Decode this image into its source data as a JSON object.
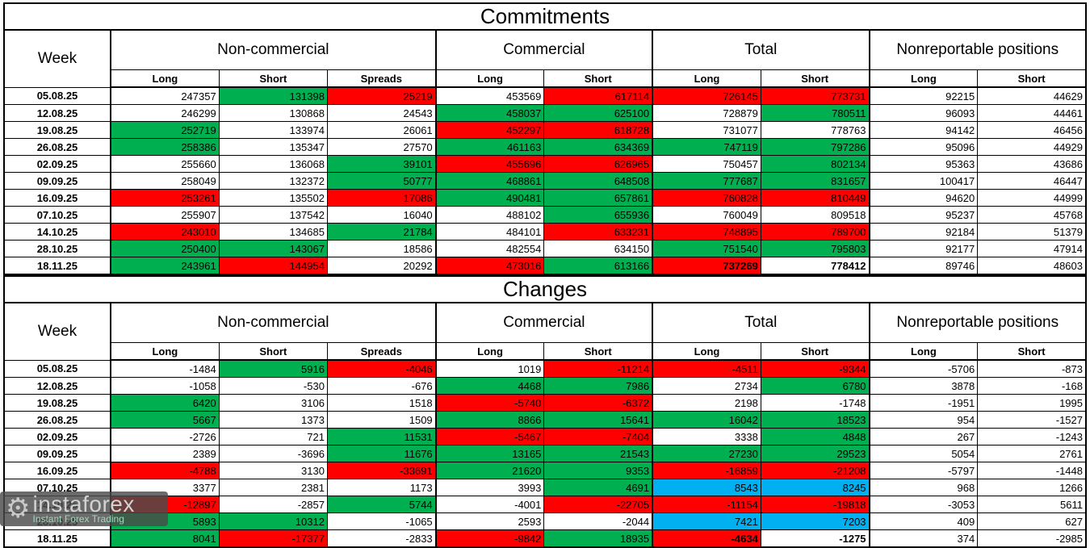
{
  "colors": {
    "w": "#FFFFFF",
    "g": "#00B050",
    "r": "#FF0000",
    "b": "#00B0F0",
    "grid": "#000000"
  },
  "logo": {
    "brand": "instaforex",
    "tagline": "Instant Forex Trading"
  },
  "chart_data": [
    {
      "type": "table",
      "title": "Commitments",
      "week_label": "Week",
      "groups": [
        {
          "label": "Non-commercial",
          "span": 3
        },
        {
          "label": "Commercial",
          "span": 2
        },
        {
          "label": "Total",
          "span": 2
        },
        {
          "label": "Nonreportable positions",
          "span": 2
        }
      ],
      "sub_columns": [
        "Long",
        "Short",
        "Spreads",
        "Long",
        "Short",
        "Long",
        "Short",
        "Long",
        "Short"
      ],
      "weeks": [
        "05.08.25",
        "12.08.25",
        "19.08.25",
        "26.08.25",
        "02.09.25",
        "09.09.25",
        "16.09.25",
        "07.10.25",
        "14.10.25",
        "28.10.25",
        "18.11.25"
      ],
      "values": [
        [
          247357,
          131398,
          25219,
          453569,
          617114,
          726145,
          773731,
          92215,
          44629
        ],
        [
          246299,
          130868,
          24543,
          458037,
          625100,
          728879,
          780511,
          96093,
          44461
        ],
        [
          252719,
          133974,
          26061,
          452297,
          618728,
          731077,
          778763,
          94142,
          46456
        ],
        [
          258386,
          135347,
          27570,
          461163,
          634369,
          747119,
          797286,
          95096,
          44929
        ],
        [
          255660,
          136068,
          39101,
          455696,
          626965,
          750457,
          802134,
          95363,
          43686
        ],
        [
          258049,
          132372,
          50777,
          468861,
          648508,
          777687,
          831657,
          100417,
          46447
        ],
        [
          253261,
          135502,
          17086,
          490481,
          657861,
          760828,
          810449,
          94620,
          44999
        ],
        [
          255907,
          137542,
          16040,
          488102,
          655936,
          760049,
          809518,
          95237,
          45768
        ],
        [
          243010,
          134685,
          21784,
          484101,
          633231,
          748895,
          789700,
          92184,
          51379
        ],
        [
          250400,
          143067,
          18586,
          482554,
          634150,
          751540,
          795803,
          92177,
          47914
        ],
        [
          243961,
          144954,
          20292,
          473016,
          613166,
          737269,
          778412,
          89746,
          48603
        ]
      ],
      "cell_colors": [
        [
          "w",
          "g",
          "r",
          "w",
          "r",
          "r",
          "r",
          "w",
          "w"
        ],
        [
          "w",
          "w",
          "w",
          "g",
          "g",
          "w",
          "g",
          "w",
          "w"
        ],
        [
          "g",
          "w",
          "w",
          "r",
          "r",
          "w",
          "w",
          "w",
          "w"
        ],
        [
          "g",
          "w",
          "w",
          "g",
          "g",
          "g",
          "g",
          "w",
          "w"
        ],
        [
          "w",
          "w",
          "g",
          "r",
          "r",
          "w",
          "g",
          "w",
          "w"
        ],
        [
          "w",
          "w",
          "g",
          "g",
          "g",
          "g",
          "g",
          "w",
          "w"
        ],
        [
          "r",
          "w",
          "r",
          "g",
          "g",
          "r",
          "r",
          "w",
          "w"
        ],
        [
          "w",
          "w",
          "w",
          "w",
          "g",
          "w",
          "w",
          "w",
          "w"
        ],
        [
          "r",
          "w",
          "g",
          "w",
          "r",
          "r",
          "r",
          "w",
          "w"
        ],
        [
          "g",
          "g",
          "w",
          "w",
          "w",
          "g",
          "g",
          "w",
          "w"
        ],
        [
          "g",
          "r",
          "w",
          "r",
          "g",
          "r",
          "w",
          "w",
          "w"
        ]
      ],
      "bold_cells": [
        [
          10,
          5
        ],
        [
          10,
          6
        ]
      ]
    },
    {
      "type": "table",
      "title": "Changes",
      "week_label": "Week",
      "groups": [
        {
          "label": "Non-commercial",
          "span": 3
        },
        {
          "label": "Commercial",
          "span": 2
        },
        {
          "label": "Total",
          "span": 2
        },
        {
          "label": "Nonreportable positions",
          "span": 2
        }
      ],
      "sub_columns": [
        "Long",
        "Short",
        "Spreads",
        "Long",
        "Short",
        "Long",
        "Short",
        "Long",
        "Short"
      ],
      "weeks": [
        "05.08.25",
        "12.08.25",
        "19.08.25",
        "26.08.25",
        "02.09.25",
        "09.09.25",
        "16.09.25",
        "07.10.25",
        "14.10.25",
        "28.10.25",
        "18.11.25"
      ],
      "values": [
        [
          -1484,
          5916,
          -4046,
          1019,
          -11214,
          -4511,
          -9344,
          -5706,
          -873
        ],
        [
          -1058,
          -530,
          -676,
          4468,
          7986,
          2734,
          6780,
          3878,
          -168
        ],
        [
          6420,
          3106,
          1518,
          -5740,
          -6372,
          2198,
          -1748,
          -1951,
          1995
        ],
        [
          5667,
          1373,
          1509,
          8866,
          15641,
          16042,
          18523,
          954,
          -1527
        ],
        [
          -2726,
          721,
          11531,
          -5467,
          -7404,
          3338,
          4848,
          267,
          -1243
        ],
        [
          2389,
          -3696,
          11676,
          13165,
          21543,
          27230,
          29523,
          5054,
          2761
        ],
        [
          -4788,
          3130,
          -33691,
          21620,
          9353,
          -16859,
          -21208,
          -5797,
          -1448
        ],
        [
          3377,
          2381,
          1173,
          3993,
          4691,
          8543,
          8245,
          968,
          1266
        ],
        [
          -12897,
          -2857,
          5744,
          -4001,
          -22705,
          -11154,
          -19818,
          -3053,
          5611
        ],
        [
          5893,
          10312,
          -1065,
          2593,
          -2044,
          7421,
          7203,
          409,
          627
        ],
        [
          8041,
          -17377,
          -2833,
          -9842,
          18935,
          -4634,
          -1275,
          374,
          -2985
        ]
      ],
      "cell_colors": [
        [
          "w",
          "g",
          "r",
          "w",
          "r",
          "r",
          "r",
          "w",
          "w"
        ],
        [
          "w",
          "w",
          "w",
          "g",
          "g",
          "w",
          "g",
          "w",
          "w"
        ],
        [
          "g",
          "w",
          "w",
          "r",
          "r",
          "w",
          "w",
          "w",
          "w"
        ],
        [
          "g",
          "w",
          "w",
          "g",
          "g",
          "g",
          "g",
          "w",
          "w"
        ],
        [
          "w",
          "w",
          "g",
          "r",
          "r",
          "w",
          "g",
          "w",
          "w"
        ],
        [
          "w",
          "w",
          "g",
          "g",
          "g",
          "g",
          "g",
          "w",
          "w"
        ],
        [
          "r",
          "w",
          "r",
          "g",
          "g",
          "r",
          "r",
          "w",
          "w"
        ],
        [
          "w",
          "w",
          "w",
          "w",
          "g",
          "b",
          "b",
          "w",
          "w"
        ],
        [
          "r",
          "w",
          "g",
          "w",
          "r",
          "r",
          "r",
          "w",
          "w"
        ],
        [
          "g",
          "g",
          "w",
          "w",
          "w",
          "b",
          "b",
          "w",
          "w"
        ],
        [
          "g",
          "r",
          "w",
          "r",
          "g",
          "r",
          "w",
          "w",
          "w"
        ]
      ],
      "bold_cells": [
        [
          10,
          5
        ],
        [
          10,
          6
        ]
      ]
    }
  ]
}
